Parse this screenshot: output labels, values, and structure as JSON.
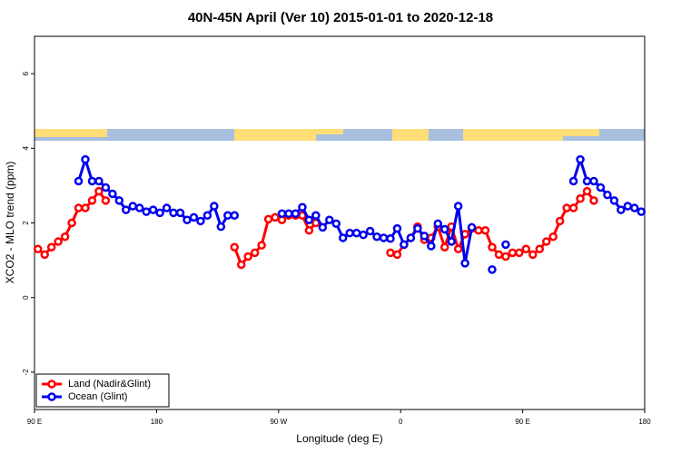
{
  "chart_data": {
    "type": "line",
    "title": "40N-45N April (Ver 10)   2015-01-01 to 2020-12-18",
    "x_label": "Longitude (deg E)",
    "y_label": "XCO2 - MLO trend (ppm)",
    "x": [
      92.5,
      97.5,
      102.5,
      107.5,
      112.5,
      117.5,
      122.5,
      127.5,
      132.5,
      137.5,
      142.5,
      147.5,
      152.5,
      157.5,
      162.5,
      167.5,
      172.5,
      177.5,
      182.5,
      187.5,
      192.5,
      197.5,
      202.5,
      207.5,
      212.5,
      217.5,
      222.5,
      227.5,
      232.5,
      237.5,
      242.5,
      247.5,
      252.5,
      257.5,
      262.5,
      267.5,
      272.5,
      277.5,
      282.5,
      287.5,
      292.5,
      297.5,
      302.5,
      307.5,
      312.5,
      317.5,
      322.5,
      327.5,
      332.5,
      337.5,
      342.5,
      347.5,
      352.5,
      357.5,
      362.5,
      367.5,
      372.5,
      377.5,
      382.5,
      387.5,
      392.5,
      397.5,
      402.5,
      407.5,
      412.5,
      417.5,
      422.5,
      427.5,
      432.5,
      437.5,
      442.5,
      447.5,
      452.5,
      457.5,
      462.5,
      467.5,
      472.5,
      477.5,
      482.5,
      487.5,
      492.5,
      497.5,
      502.5,
      507.5,
      512.5,
      517.5,
      522.5,
      527.5,
      532.5,
      537.5
    ],
    "series": [
      {
        "name": "Land (Nadir&Glint)",
        "color": "#ff0000",
        "values": [
          1.3,
          1.15,
          1.35,
          1.5,
          1.63,
          2.0,
          2.4,
          2.4,
          2.6,
          2.85,
          2.6,
          null,
          null,
          null,
          null,
          null,
          null,
          null,
          null,
          null,
          null,
          null,
          null,
          null,
          null,
          null,
          null,
          null,
          null,
          1.35,
          0.88,
          1.1,
          1.2,
          1.4,
          2.1,
          2.15,
          2.08,
          2.2,
          2.2,
          2.2,
          1.8,
          2.0,
          null,
          null,
          null,
          null,
          null,
          null,
          null,
          null,
          null,
          null,
          1.2,
          1.15,
          1.42,
          1.6,
          1.9,
          1.55,
          1.6,
          1.9,
          1.35,
          1.9,
          1.3,
          1.7,
          1.85,
          1.8,
          1.8,
          1.35,
          1.15,
          1.1,
          1.2,
          1.2,
          1.3,
          1.15,
          1.3,
          1.5,
          1.63,
          2.05,
          2.4,
          2.4,
          2.65,
          2.85,
          2.6,
          null,
          null,
          null,
          null,
          null,
          null,
          null
        ]
      },
      {
        "name": "Ocean (Glint)",
        "color": "#0000ee",
        "values": [
          null,
          null,
          null,
          null,
          null,
          null,
          3.12,
          3.7,
          3.12,
          3.12,
          2.95,
          2.78,
          2.6,
          2.35,
          2.45,
          2.4,
          2.3,
          2.35,
          2.27,
          2.4,
          2.27,
          2.27,
          2.08,
          2.15,
          2.05,
          2.2,
          2.45,
          1.9,
          2.2,
          2.2,
          null,
          null,
          null,
          null,
          null,
          null,
          2.25,
          2.25,
          2.25,
          2.42,
          2.08,
          2.2,
          1.88,
          2.08,
          1.98,
          1.6,
          1.73,
          1.73,
          1.68,
          1.78,
          1.63,
          1.6,
          1.58,
          1.85,
          1.42,
          1.6,
          1.85,
          1.65,
          1.38,
          1.98,
          1.83,
          1.5,
          2.45,
          0.92,
          1.88,
          null,
          null,
          0.75,
          null,
          1.42,
          null,
          null,
          null,
          null,
          null,
          null,
          null,
          null,
          null,
          3.12,
          3.7,
          3.12,
          3.12,
          2.95,
          2.75,
          2.6,
          2.35,
          2.45,
          2.4,
          2.3
        ]
      }
    ],
    "xlim": [
      90,
      540
    ],
    "xticks": [
      {
        "value": 90,
        "label": "90 E"
      },
      {
        "value": 180,
        "label": "180"
      },
      {
        "value": 270,
        "label": "90 W"
      },
      {
        "value": 360,
        "label": "0"
      },
      {
        "value": 450,
        "label": "90 E"
      },
      {
        "value": 540,
        "label": "180"
      }
    ],
    "ylim": [
      -3,
      7
    ],
    "yticks": [
      -2,
      0,
      2,
      4,
      6
    ],
    "legend": "bottom-left"
  }
}
